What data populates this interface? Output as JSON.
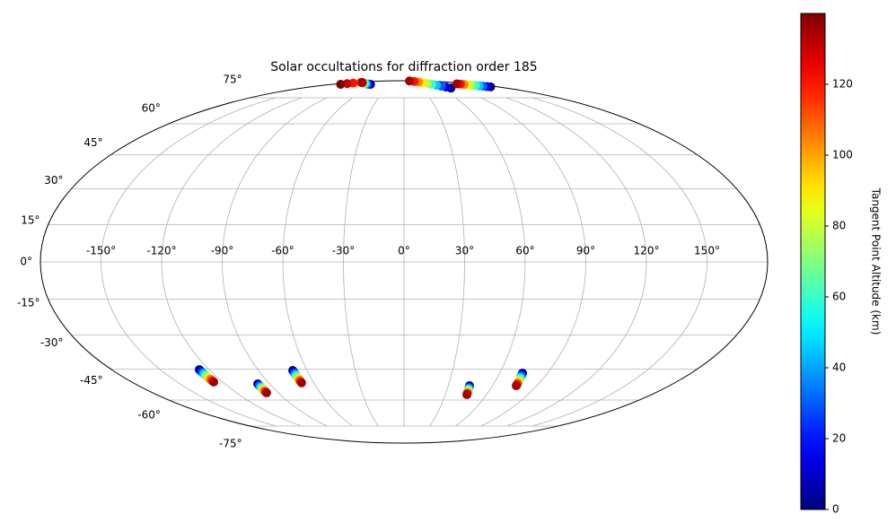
{
  "chart_data": {
    "type": "scatter",
    "projection": "mollweide",
    "title": "Solar occultations for diffraction order 185",
    "xlim": [
      -180,
      180
    ],
    "ylim": [
      -90,
      90
    ],
    "grid": true,
    "colormap": "jet",
    "xticks": [
      {
        "value": -150,
        "label": "-150°"
      },
      {
        "value": -120,
        "label": "-120°"
      },
      {
        "value": -90,
        "label": "-90°"
      },
      {
        "value": -60,
        "label": "-60°"
      },
      {
        "value": -30,
        "label": "-30°"
      },
      {
        "value": 0,
        "label": "0°"
      },
      {
        "value": 30,
        "label": "30°"
      },
      {
        "value": 60,
        "label": "60°"
      },
      {
        "value": 90,
        "label": "90°"
      },
      {
        "value": 120,
        "label": "120°"
      },
      {
        "value": 150,
        "label": "150°"
      }
    ],
    "yticks": [
      {
        "value": -75,
        "label": "-75°"
      },
      {
        "value": -60,
        "label": "-60°"
      },
      {
        "value": -45,
        "label": "-45°"
      },
      {
        "value": -30,
        "label": "-30°"
      },
      {
        "value": -15,
        "label": "-15°"
      },
      {
        "value": 0,
        "label": "0°"
      },
      {
        "value": 15,
        "label": "15°"
      },
      {
        "value": 30,
        "label": "30°"
      },
      {
        "value": 45,
        "label": "45°"
      },
      {
        "value": 60,
        "label": "60°"
      },
      {
        "value": 75,
        "label": "75°"
      }
    ],
    "colorbar": {
      "label": "Tangent Point Altitude (km)",
      "clim": [
        0,
        140
      ],
      "ticks": [
        0,
        20,
        40,
        60,
        80,
        100,
        120
      ]
    },
    "series": [
      {
        "x": [
          -126.0,
          -126.0,
          -126.0,
          -125.9,
          -125.9,
          -125.9,
          -125.9,
          -125.8,
          -125.8,
          -125.8
        ],
        "values": [
          -45.2,
          -45.8,
          -46.5,
          -47.1,
          -47.8,
          -48.4,
          -49.1,
          -49.7,
          -50.4,
          -51.0
        ],
        "altitude": [
          0,
          15,
          30,
          45,
          60,
          75,
          90,
          105,
          120,
          135
        ]
      },
      {
        "x": [
          -97.9,
          -98.0,
          -98.0,
          -98.1,
          -98.1,
          -98.2,
          -98.2,
          -98.3,
          -98.3,
          -98.4
        ],
        "values": [
          -51.9,
          -52.4,
          -52.9,
          -53.4,
          -53.9,
          -54.3,
          -54.8,
          -55.3,
          -55.8,
          -56.3
        ],
        "altitude": [
          0,
          15,
          30,
          45,
          60,
          75,
          90,
          105,
          120,
          135
        ]
      },
      {
        "x": [
          -68.8,
          -68.7,
          -68.6,
          -68.6,
          -68.5,
          -68.4,
          -68.3,
          -68.3,
          -68.2,
          -68.1
        ],
        "values": [
          -45.6,
          -46.2,
          -46.9,
          -47.5,
          -48.2,
          -48.8,
          -49.5,
          -50.1,
          -50.8,
          -51.4
        ],
        "altitude": [
          0,
          15,
          30,
          45,
          60,
          75,
          90,
          105,
          120,
          135
        ]
      },
      {
        "x": [
          44.4,
          44.5,
          44.7,
          44.8,
          45.0,
          45.1,
          45.3,
          45.4,
          45.6,
          45.7
        ],
        "values": [
          -52.8,
          -53.3,
          -53.8,
          -54.3,
          -54.8,
          -55.2,
          -55.7,
          -56.2,
          -56.7,
          -57.2
        ],
        "altitude": [
          0,
          15,
          30,
          45,
          60,
          75,
          90,
          105,
          120,
          135
        ]
      },
      {
        "x": [
          74.3,
          74.5,
          74.7,
          74.9,
          75.1,
          75.3,
          75.5,
          75.7,
          75.9,
          76.1
        ],
        "values": [
          -46.8,
          -47.5,
          -48.1,
          -48.8,
          -49.5,
          -50.1,
          -50.8,
          -51.5,
          -52.1,
          -52.8
        ],
        "altitude": [
          0,
          15,
          30,
          45,
          60,
          75,
          90,
          105,
          120,
          135
        ]
      },
      {
        "x": [
          82.5,
          79.3,
          76.1,
          72.8,
          69.6,
          66.4,
          63.2,
          59.9,
          56.7,
          53.5
        ],
        "values": [
          82.0,
          82.8,
          83.6,
          84.5,
          85.3,
          86.1,
          86.9,
          87.8,
          88.6,
          89.4
        ],
        "altitude": [
          0,
          15,
          30,
          45,
          60,
          75,
          90,
          105,
          120,
          135
        ]
      },
      {
        "x": [
          166,
          163.3,
          160.7,
          158,
          155.3,
          152.7,
          150,
          147.3,
          144.7,
          142
        ],
        "values": [
          83.0,
          83.3,
          83.6,
          83.9,
          84.2,
          84.6,
          84.9,
          85.2,
          85.5,
          85.8
        ],
        "altitude": [
          0,
          15,
          30,
          45,
          60,
          75,
          90,
          105,
          120,
          135
        ]
      },
      {
        "x": [
          -157,
          -157.3,
          -157.7,
          -158
        ],
        "values": [
          87.3,
          86.6,
          86.0,
          85.3
        ],
        "altitude": [
          110,
          120,
          130,
          140
        ]
      },
      {
        "x": [
          -83.5,
          -91,
          -98.5,
          -106,
          -113.5,
          -121,
          -128.5,
          -136,
          -143.5,
          -151
        ],
        "values": [
          85.3,
          85.5,
          85.7,
          86.0,
          86.2,
          86.4,
          86.6,
          86.9,
          87.1,
          87.3
        ],
        "altitude": [
          0,
          15,
          30,
          45,
          60,
          75,
          90,
          105,
          120,
          135
        ]
      }
    ]
  }
}
